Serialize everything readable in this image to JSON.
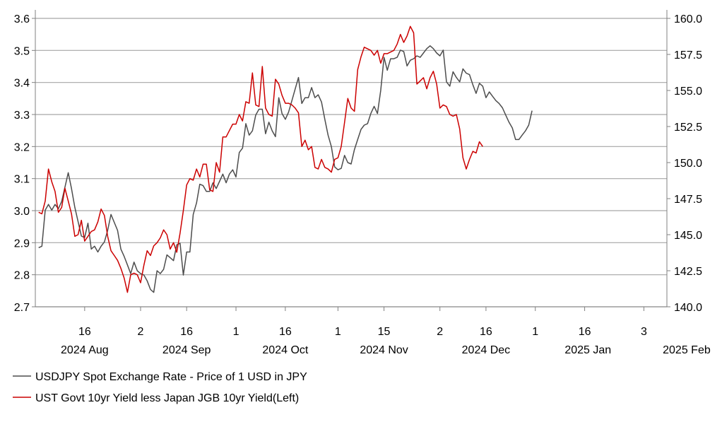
{
  "chart_data": {
    "type": "line",
    "title": "",
    "left_axis": {
      "ylim": [
        2.7,
        3.6
      ],
      "ticks": [
        "2.7",
        "2.8",
        "2.9",
        "3.0",
        "3.1",
        "3.2",
        "3.3",
        "3.4",
        "3.5",
        "3.6"
      ],
      "label": ""
    },
    "right_axis": {
      "ylim": [
        140.0,
        160.0
      ],
      "ticks": [
        "140.0",
        "142.5",
        "145.0",
        "147.5",
        "150.0",
        "152.5",
        "155.0",
        "157.5",
        "160.0"
      ],
      "label": ""
    },
    "x_day_ticks": [
      {
        "label": "16",
        "d": 15
      },
      {
        "label": "2",
        "d": 32
      },
      {
        "label": "16",
        "d": 46
      },
      {
        "label": "1",
        "d": 61
      },
      {
        "label": "16",
        "d": 76
      },
      {
        "label": "1",
        "d": 92
      },
      {
        "label": "15",
        "d": 106
      },
      {
        "label": "2",
        "d": 123
      },
      {
        "label": "16",
        "d": 137
      },
      {
        "label": "1",
        "d": 152
      },
      {
        "label": "16",
        "d": 167
      },
      {
        "label": "3",
        "d": 185
      }
    ],
    "x_month_labels": [
      {
        "label": "2024 Aug",
        "d": 15
      },
      {
        "label": "2024 Sep",
        "d": 46
      },
      {
        "label": "2024 Oct",
        "d": 76
      },
      {
        "label": "2024 Nov",
        "d": 106
      },
      {
        "label": "2024 Dec",
        "d": 137
      },
      {
        "label": "2025 Jan",
        "d": 168
      },
      {
        "label": "2025 Feb",
        "d": 198
      }
    ],
    "x_range_days": [
      0,
      192
    ],
    "series": [
      {
        "name": "USDJPY Spot Exchange Rate - Price of 1 USD in JPY",
        "axis": "right",
        "color": "#4d4d4d",
        "points": [
          [
            1,
            144.1
          ],
          [
            2,
            144.2
          ],
          [
            3,
            146.7
          ],
          [
            4,
            147.1
          ],
          [
            5,
            146.7
          ],
          [
            6,
            147.1
          ],
          [
            7,
            146.8
          ],
          [
            8,
            147.3
          ],
          [
            10,
            149.3
          ],
          [
            11,
            148.2
          ],
          [
            12,
            146.9
          ],
          [
            14,
            144.9
          ],
          [
            15,
            144.8
          ],
          [
            16,
            145.8
          ],
          [
            17,
            144.0
          ],
          [
            18,
            144.2
          ],
          [
            19,
            143.8
          ],
          [
            20,
            144.2
          ],
          [
            21,
            144.5
          ],
          [
            22,
            145.3
          ],
          [
            23,
            146.4
          ],
          [
            25,
            145.3
          ],
          [
            26,
            144.0
          ],
          [
            27,
            143.5
          ],
          [
            28,
            142.9
          ],
          [
            29,
            142.3
          ],
          [
            30,
            143.1
          ],
          [
            31,
            142.5
          ],
          [
            32,
            142.3
          ],
          [
            33,
            142.2
          ],
          [
            34,
            141.8
          ],
          [
            35,
            141.2
          ],
          [
            36,
            141.0
          ],
          [
            37,
            142.5
          ],
          [
            38,
            142.3
          ],
          [
            39,
            142.6
          ],
          [
            40,
            143.6
          ],
          [
            41,
            143.4
          ],
          [
            42,
            143.2
          ],
          [
            43,
            144.3
          ],
          [
            44,
            144.4
          ],
          [
            45,
            142.2
          ],
          [
            46,
            143.8
          ],
          [
            47,
            143.8
          ],
          [
            48,
            146.4
          ],
          [
            49,
            147.2
          ],
          [
            50,
            148.5
          ],
          [
            51,
            148.4
          ],
          [
            52,
            148.0
          ],
          [
            53,
            148.0
          ],
          [
            54,
            148.6
          ],
          [
            55,
            148.2
          ],
          [
            56,
            148.7
          ],
          [
            57,
            149.2
          ],
          [
            58,
            148.6
          ],
          [
            59,
            149.2
          ],
          [
            60,
            149.5
          ],
          [
            61,
            149.0
          ],
          [
            62,
            150.7
          ],
          [
            63,
            151.0
          ],
          [
            64,
            152.7
          ],
          [
            65,
            151.9
          ],
          [
            66,
            152.2
          ],
          [
            67,
            153.3
          ],
          [
            68,
            153.7
          ],
          [
            69,
            153.7
          ],
          [
            70,
            152.0
          ],
          [
            71,
            152.8
          ],
          [
            72,
            152.2
          ],
          [
            73,
            151.8
          ],
          [
            74,
            154.5
          ],
          [
            75,
            153.4
          ],
          [
            76,
            153.0
          ],
          [
            77,
            153.5
          ],
          [
            78,
            154.3
          ],
          [
            79,
            155.1
          ],
          [
            80,
            155.9
          ],
          [
            81,
            154.1
          ],
          [
            82,
            154.5
          ],
          [
            83,
            154.5
          ],
          [
            84,
            155.2
          ],
          [
            85,
            154.5
          ],
          [
            86,
            154.7
          ],
          [
            87,
            154.2
          ],
          [
            88,
            153.0
          ],
          [
            89,
            151.9
          ],
          [
            90,
            151.1
          ],
          [
            91,
            149.7
          ],
          [
            92,
            149.5
          ],
          [
            93,
            149.6
          ],
          [
            94,
            150.5
          ],
          [
            95,
            150.0
          ],
          [
            96,
            149.9
          ],
          [
            97,
            150.9
          ],
          [
            98,
            151.6
          ],
          [
            99,
            152.3
          ],
          [
            100,
            152.6
          ],
          [
            101,
            152.7
          ],
          [
            102,
            153.4
          ],
          [
            103,
            153.9
          ],
          [
            104,
            153.4
          ],
          [
            105,
            155.0
          ],
          [
            106,
            157.3
          ],
          [
            107,
            156.4
          ],
          [
            108,
            157.2
          ],
          [
            109,
            157.2
          ],
          [
            110,
            157.3
          ],
          [
            111,
            157.8
          ],
          [
            112,
            157.7
          ],
          [
            113,
            156.7
          ],
          [
            114,
            157.1
          ],
          [
            115,
            157.2
          ],
          [
            116,
            157.4
          ],
          [
            117,
            157.3
          ],
          [
            118,
            157.6
          ],
          [
            119,
            157.9
          ],
          [
            120,
            158.1
          ],
          [
            121,
            157.9
          ],
          [
            122,
            157.6
          ],
          [
            123,
            157.4
          ],
          [
            124,
            157.8
          ],
          [
            125,
            155.6
          ],
          [
            126,
            155.3
          ],
          [
            127,
            156.3
          ],
          [
            128,
            155.9
          ],
          [
            129,
            155.6
          ],
          [
            130,
            156.5
          ],
          [
            131,
            156.2
          ],
          [
            132,
            156.1
          ],
          [
            133,
            155.4
          ],
          [
            134,
            154.8
          ],
          [
            135,
            155.5
          ],
          [
            136,
            155.3
          ],
          [
            137,
            154.5
          ],
          [
            138,
            154.9
          ],
          [
            139,
            154.6
          ],
          [
            140,
            154.3
          ],
          [
            141,
            154.1
          ],
          [
            142,
            153.8
          ],
          [
            143,
            153.3
          ],
          [
            144,
            152.8
          ],
          [
            145,
            152.4
          ],
          [
            146,
            151.6
          ],
          [
            147,
            151.6
          ],
          [
            148,
            151.9
          ],
          [
            149,
            152.2
          ],
          [
            150,
            152.6
          ],
          [
            151,
            153.6
          ]
        ]
      },
      {
        "name": "UST Govt 10yr Yield less Japan JGB 10yr Yield(Left)",
        "axis": "left",
        "color": "#cc0000",
        "points": [
          [
            1,
            2.995
          ],
          [
            2,
            2.99
          ],
          [
            3,
            3.03
          ],
          [
            4,
            3.13
          ],
          [
            5,
            3.09
          ],
          [
            6,
            3.06
          ],
          [
            7,
            2.995
          ],
          [
            8,
            3.01
          ],
          [
            9,
            3.07
          ],
          [
            10,
            3.03
          ],
          [
            11,
            2.99
          ],
          [
            12,
            2.92
          ],
          [
            13,
            2.925
          ],
          [
            14,
            2.97
          ],
          [
            15,
            2.905
          ],
          [
            16,
            2.92
          ],
          [
            17,
            2.935
          ],
          [
            18,
            2.94
          ],
          [
            19,
            2.965
          ],
          [
            20,
            3.005
          ],
          [
            21,
            2.985
          ],
          [
            22,
            2.92
          ],
          [
            23,
            2.875
          ],
          [
            24,
            2.86
          ],
          [
            25,
            2.845
          ],
          [
            26,
            2.82
          ],
          [
            27,
            2.79
          ],
          [
            28,
            2.745
          ],
          [
            29,
            2.8
          ],
          [
            30,
            2.805
          ],
          [
            31,
            2.8
          ],
          [
            32,
            2.775
          ],
          [
            33,
            2.83
          ],
          [
            34,
            2.875
          ],
          [
            35,
            2.86
          ],
          [
            36,
            2.89
          ],
          [
            37,
            2.9
          ],
          [
            38,
            2.915
          ],
          [
            39,
            2.94
          ],
          [
            40,
            2.925
          ],
          [
            41,
            2.88
          ],
          [
            42,
            2.9
          ],
          [
            43,
            2.87
          ],
          [
            44,
            2.93
          ],
          [
            45,
            3.0
          ],
          [
            46,
            3.08
          ],
          [
            47,
            3.1
          ],
          [
            48,
            3.095
          ],
          [
            49,
            3.13
          ],
          [
            50,
            3.105
          ],
          [
            51,
            3.145
          ],
          [
            52,
            3.145
          ],
          [
            53,
            3.065
          ],
          [
            54,
            3.06
          ],
          [
            55,
            3.15
          ],
          [
            56,
            3.12
          ],
          [
            57,
            3.23
          ],
          [
            58,
            3.23
          ],
          [
            59,
            3.25
          ],
          [
            60,
            3.27
          ],
          [
            61,
            3.27
          ],
          [
            62,
            3.3
          ],
          [
            63,
            3.28
          ],
          [
            64,
            3.34
          ],
          [
            65,
            3.335
          ],
          [
            66,
            3.43
          ],
          [
            67,
            3.33
          ],
          [
            68,
            3.325
          ],
          [
            69,
            3.45
          ],
          [
            70,
            3.32
          ],
          [
            71,
            3.3
          ],
          [
            72,
            3.295
          ],
          [
            73,
            3.41
          ],
          [
            74,
            3.395
          ],
          [
            75,
            3.36
          ],
          [
            76,
            3.335
          ],
          [
            77,
            3.335
          ],
          [
            78,
            3.33
          ],
          [
            79,
            3.32
          ],
          [
            80,
            3.305
          ],
          [
            81,
            3.2
          ],
          [
            82,
            3.22
          ],
          [
            83,
            3.19
          ],
          [
            84,
            3.2
          ],
          [
            85,
            3.135
          ],
          [
            86,
            3.13
          ],
          [
            87,
            3.16
          ],
          [
            88,
            3.135
          ],
          [
            89,
            3.13
          ],
          [
            90,
            3.12
          ],
          [
            91,
            3.16
          ],
          [
            92,
            3.165
          ],
          [
            93,
            3.2
          ],
          [
            94,
            3.275
          ],
          [
            95,
            3.35
          ],
          [
            96,
            3.32
          ],
          [
            97,
            3.31
          ],
          [
            98,
            3.44
          ],
          [
            99,
            3.48
          ],
          [
            100,
            3.51
          ],
          [
            101,
            3.505
          ],
          [
            102,
            3.5
          ],
          [
            103,
            3.485
          ],
          [
            104,
            3.5
          ],
          [
            105,
            3.46
          ],
          [
            106,
            3.49
          ],
          [
            107,
            3.49
          ],
          [
            108,
            3.495
          ],
          [
            109,
            3.5
          ],
          [
            110,
            3.52
          ],
          [
            111,
            3.55
          ],
          [
            112,
            3.525
          ],
          [
            113,
            3.545
          ],
          [
            114,
            3.575
          ],
          [
            115,
            3.555
          ],
          [
            116,
            3.395
          ],
          [
            117,
            3.405
          ],
          [
            118,
            3.415
          ],
          [
            119,
            3.38
          ],
          [
            120,
            3.415
          ],
          [
            121,
            3.435
          ],
          [
            122,
            3.395
          ],
          [
            123,
            3.32
          ],
          [
            124,
            3.33
          ],
          [
            125,
            3.325
          ],
          [
            126,
            3.3
          ],
          [
            127,
            3.295
          ],
          [
            128,
            3.3
          ],
          [
            129,
            3.255
          ],
          [
            130,
            3.165
          ],
          [
            131,
            3.13
          ],
          [
            132,
            3.16
          ],
          [
            133,
            3.185
          ],
          [
            134,
            3.18
          ],
          [
            135,
            3.215
          ],
          [
            136,
            3.2
          ]
        ]
      }
    ],
    "legend": {
      "position": "bottom-left",
      "entries": [
        {
          "label": "USDJPY Spot Exchange Rate - Price of 1 USD in JPY",
          "color": "#4d4d4d"
        },
        {
          "label": "UST Govt 10yr Yield less Japan JGB 10yr Yield(Left)",
          "color": "#cc0000"
        }
      ]
    },
    "grid": true
  }
}
